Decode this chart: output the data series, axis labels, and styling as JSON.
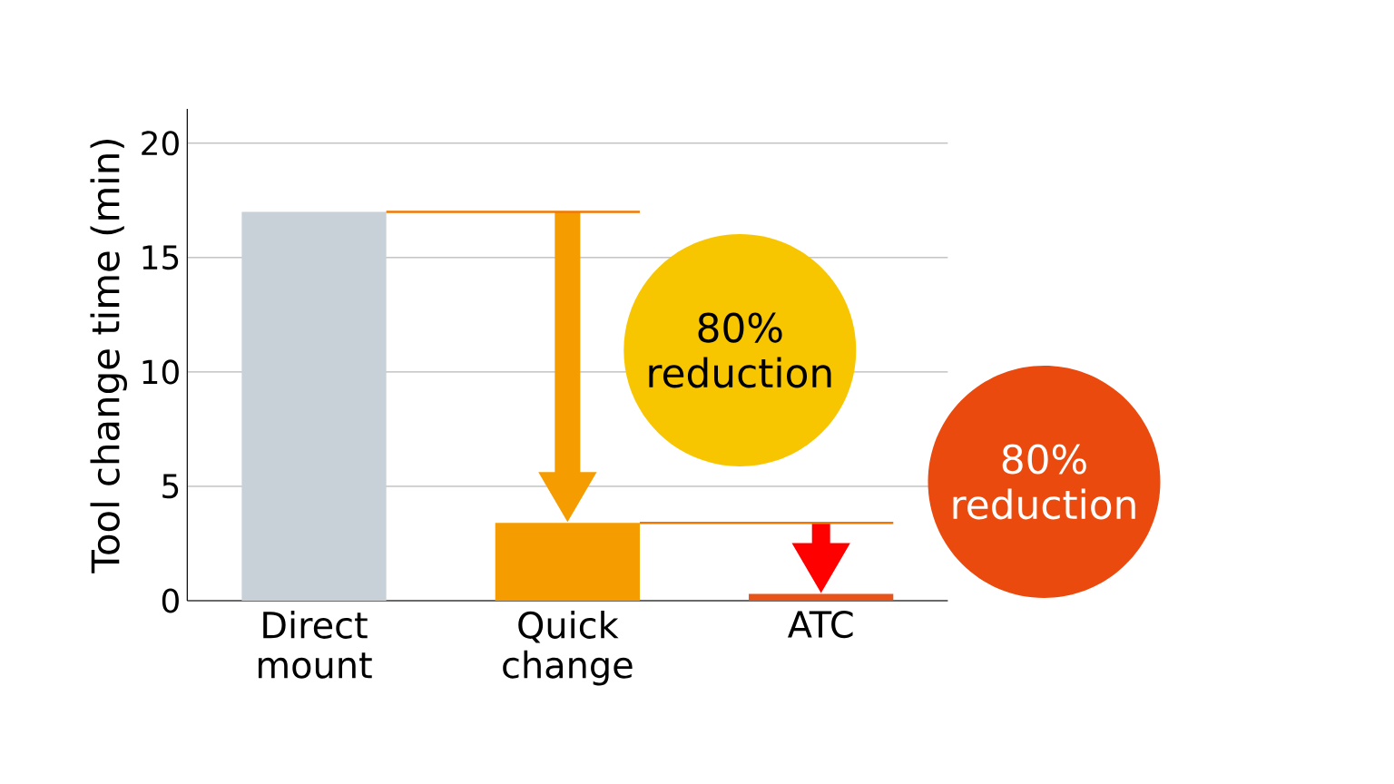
{
  "chart_data": {
    "type": "bar",
    "ylabel": "Tool change time (min)",
    "categories": [
      "Direct mount",
      "Quick change",
      "ATC"
    ],
    "values": [
      17,
      3.4,
      0.3
    ],
    "colors": [
      "#c8d0d8",
      "#f59c00",
      "#e8531a"
    ],
    "ylim": [
      0,
      21.5
    ],
    "yticks": [
      0,
      5,
      10,
      15,
      20
    ],
    "grid": "y",
    "ref_lines": [
      {
        "axis": "y",
        "value": 17,
        "color": "#f07800"
      },
      {
        "axis": "y",
        "value": 3.4,
        "color": "#f07800"
      }
    ],
    "annotations": [
      "80% reduction",
      "80% reduction"
    ]
  }
}
